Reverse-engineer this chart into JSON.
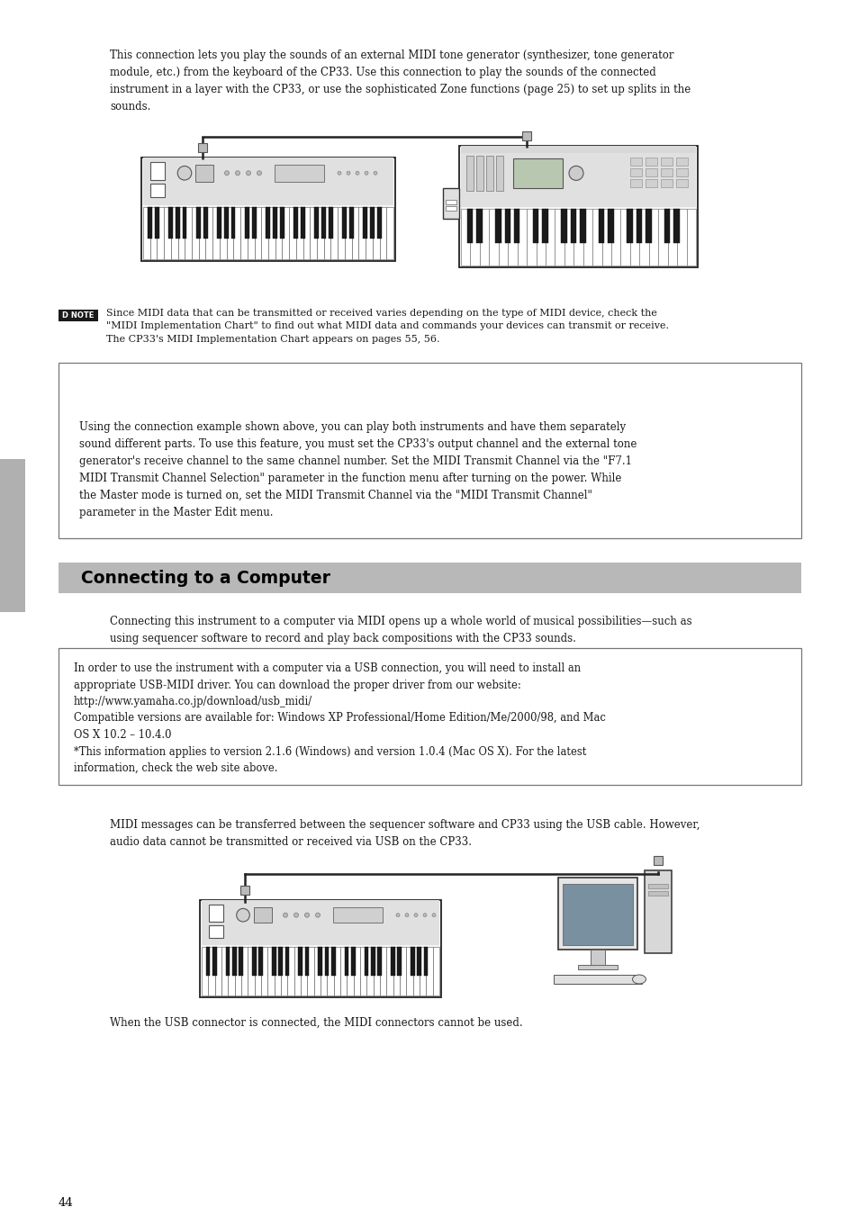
{
  "page_bg": "#ffffff",
  "text_color": "#1a1a1a",
  "header_bg": "#b8b8b8",
  "section_header": "Connecting to a Computer",
  "page_number": "44",
  "tab_color": "#b0b0b0",
  "para1": "This connection lets you play the sounds of an external MIDI tone generator (synthesizer, tone generator\nmodule, etc.) from the keyboard of the CP33. Use this connection to play the sounds of the connected\ninstrument in a layer with the CP33, or use the sophisticated Zone functions (page 25) to set up splits in the\nsounds.",
  "note_text": "Since MIDI data that can be transmitted or received varies depending on the type of MIDI device, check the\n\"MIDI Implementation Chart\" to find out what MIDI data and commands your devices can transmit or receive.\nThe CP33's MIDI Implementation Chart appears on pages 55, 56.",
  "box1_text": "Using the connection example shown above, you can play both instruments and have them separately\nsound different parts. To use this feature, you must set the CP33's output channel and the external tone\ngenerator's receive channel to the same channel number. Set the MIDI Transmit Channel via the \"F7.1\nMIDI Transmit Channel Selection\" parameter in the function menu after turning on the power. While\nthe Master mode is turned on, set the MIDI Transmit Channel via the \"MIDI Transmit Channel\"\nparameter in the Master Edit menu.",
  "intro_text": "Connecting this instrument to a computer via MIDI opens up a whole world of musical possibilities—such as\nusing sequencer software to record and play back compositions with the CP33 sounds.",
  "box2_text": "In order to use the instrument with a computer via a USB connection, you will need to install an\nappropriate USB-MIDI driver. You can download the proper driver from our website:\nhttp://www.yamaha.co.jp/download/usb_midi/\nCompatible versions are available for: Windows XP Professional/Home Edition/Me/2000/98, and Mac\nOS X 10.2 – 10.4.0\n*This information applies to version 2.1.6 (Windows) and version 1.0.4 (Mac OS X). For the latest\ninformation, check the web site above.",
  "midi_text": "MIDI messages can be transferred between the sequencer software and CP33 using the USB cable. However,\naudio data cannot be transmitted or received via USB on the CP33.",
  "footer_note": "When the USB connector is connected, the MIDI connectors cannot be used."
}
